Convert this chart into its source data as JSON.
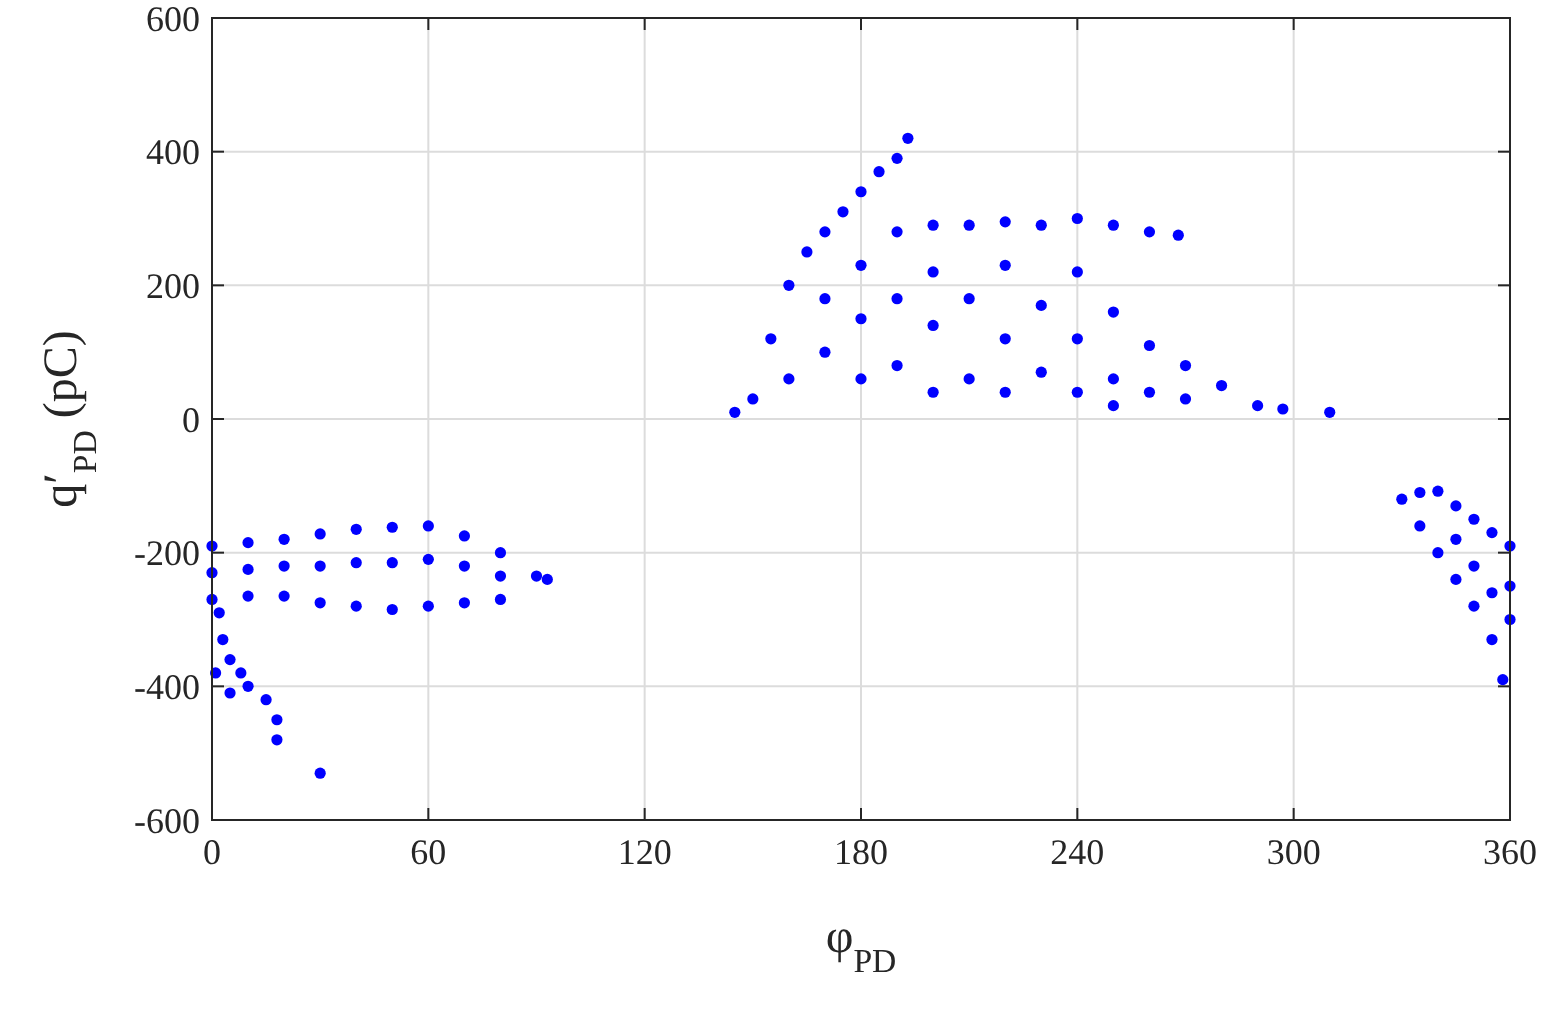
{
  "chart_data": {
    "type": "scatter",
    "xlabel": "φ$_{PD}$",
    "ylabel": "q′$_{PD}$ (pC)",
    "xlim": [
      0,
      360
    ],
    "ylim": [
      -600,
      600
    ],
    "xticks": [
      0,
      60,
      120,
      180,
      240,
      300,
      360
    ],
    "yticks": [
      -600,
      -400,
      -200,
      0,
      200,
      400,
      600
    ],
    "grid": true,
    "marker": "circle",
    "series": [
      {
        "color": "#0000ff",
        "x": [
          0,
          0,
          0,
          10,
          10,
          10,
          20,
          20,
          20,
          30,
          30,
          30,
          40,
          40,
          40,
          50,
          50,
          50,
          60,
          60,
          60,
          70,
          70,
          70,
          80,
          80,
          80,
          90,
          93,
          2,
          3,
          5,
          8,
          5,
          10,
          15,
          18,
          18,
          30,
          1,
          145,
          150,
          155,
          160,
          165,
          170,
          175,
          180,
          185,
          190,
          193,
          160,
          170,
          170,
          180,
          180,
          180,
          190,
          190,
          190,
          200,
          200,
          200,
          200,
          210,
          210,
          210,
          220,
          220,
          220,
          220,
          230,
          230,
          230,
          240,
          240,
          240,
          240,
          250,
          250,
          250,
          260,
          260,
          260,
          268,
          270,
          280,
          290,
          297,
          310,
          270,
          250,
          330,
          335,
          340,
          345,
          350,
          355,
          360,
          335,
          340,
          345,
          350,
          355,
          358,
          360,
          350,
          360,
          345,
          355
        ],
        "values": [
          -190,
          -230,
          -270,
          -185,
          -225,
          -265,
          -180,
          -220,
          -265,
          -172,
          -220,
          -275,
          -165,
          -215,
          -280,
          -162,
          -215,
          -285,
          -160,
          -210,
          -280,
          -175,
          -220,
          -275,
          -200,
          -235,
          -270,
          -235,
          -240,
          -290,
          -330,
          -360,
          -380,
          -410,
          -400,
          -420,
          -450,
          -480,
          -530,
          -380,
          10,
          30,
          120,
          200,
          250,
          280,
          310,
          340,
          370,
          390,
          420,
          60,
          100,
          180,
          60,
          150,
          230,
          280,
          80,
          180,
          290,
          40,
          140,
          220,
          290,
          60,
          180,
          295,
          40,
          120,
          230,
          290,
          70,
          170,
          300,
          40,
          120,
          220,
          290,
          160,
          60,
          280,
          110,
          40,
          275,
          80,
          50,
          20,
          15,
          10,
          30,
          20,
          -120,
          -110,
          -108,
          -130,
          -150,
          -170,
          -190,
          -160,
          -200,
          -240,
          -280,
          -330,
          -390,
          -300,
          -220,
          -250,
          -180,
          -260
        ]
      }
    ]
  }
}
